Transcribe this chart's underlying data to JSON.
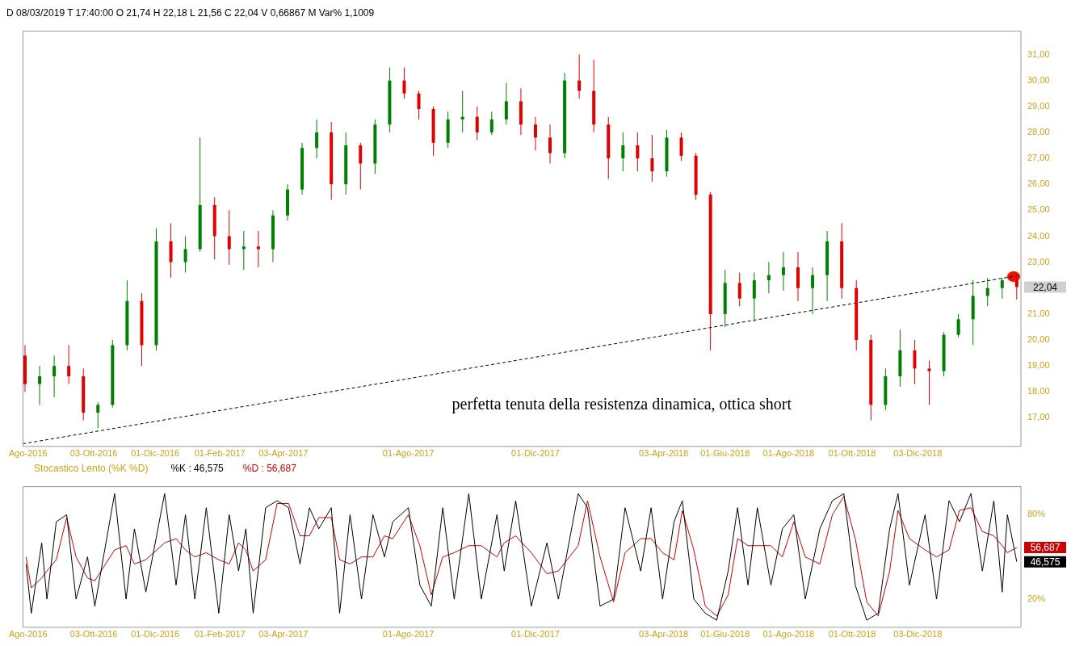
{
  "chart_data": [
    {
      "type": "candlestick",
      "subtitle": "D 08/03/2019  T 17:40:00  O 21,74  H 22,18  L 21,56  C 22,04  V 0,66867 M  Var% 1,1009",
      "x": [
        "2016-07-29",
        "2016-08-12",
        "2016-08-26",
        "2016-09-09",
        "2016-09-23",
        "2016-10-07",
        "2016-10-21",
        "2016-11-04",
        "2016-11-18",
        "2016-12-02",
        "2016-12-16",
        "2016-12-30",
        "2017-01-13",
        "2017-01-27",
        "2017-02-10",
        "2017-02-24",
        "2017-03-10",
        "2017-03-24",
        "2017-04-07",
        "2017-04-21",
        "2017-05-05",
        "2017-05-19",
        "2017-06-02",
        "2017-06-16",
        "2017-06-30",
        "2017-07-14",
        "2017-07-28",
        "2017-08-11",
        "2017-08-25",
        "2017-09-08",
        "2017-09-22",
        "2017-10-06",
        "2017-10-20",
        "2017-11-03",
        "2017-11-17",
        "2017-12-01",
        "2017-12-15",
        "2017-12-29",
        "2018-01-12",
        "2018-01-26",
        "2018-02-09",
        "2018-02-23",
        "2018-03-09",
        "2018-03-23",
        "2018-04-06",
        "2018-04-20",
        "2018-05-04",
        "2018-05-18",
        "2018-06-01",
        "2018-06-15",
        "2018-06-29",
        "2018-07-13",
        "2018-07-27",
        "2018-08-10",
        "2018-08-24",
        "2018-09-07",
        "2018-09-21",
        "2018-10-05",
        "2018-10-19",
        "2018-11-02",
        "2018-11-16",
        "2018-11-30",
        "2018-12-14",
        "2018-12-28",
        "2019-01-11",
        "2019-01-25",
        "2019-02-08",
        "2019-02-22",
        "2019-03-08"
      ],
      "ohlc": [
        [
          19.4,
          19.8,
          18.0,
          18.3
        ],
        [
          18.3,
          19.0,
          17.5,
          18.6
        ],
        [
          18.6,
          19.4,
          17.8,
          19.0
        ],
        [
          19.0,
          19.8,
          18.3,
          18.6
        ],
        [
          18.6,
          18.9,
          16.9,
          17.2
        ],
        [
          17.2,
          17.6,
          16.6,
          17.5
        ],
        [
          17.5,
          20.0,
          17.4,
          19.8
        ],
        [
          19.8,
          22.3,
          19.6,
          21.5
        ],
        [
          21.5,
          21.8,
          19.0,
          19.8
        ],
        [
          19.8,
          24.3,
          19.6,
          23.8
        ],
        [
          23.8,
          24.5,
          22.4,
          23.0
        ],
        [
          23.0,
          24.0,
          22.6,
          23.5
        ],
        [
          23.5,
          27.8,
          23.4,
          25.2
        ],
        [
          25.2,
          25.5,
          23.1,
          24.0
        ],
        [
          24.0,
          25.0,
          22.9,
          23.5
        ],
        [
          23.5,
          24.2,
          22.7,
          23.6
        ],
        [
          23.6,
          24.2,
          22.8,
          23.5
        ],
        [
          23.5,
          25.0,
          23.0,
          24.8
        ],
        [
          24.8,
          26.0,
          24.6,
          25.8
        ],
        [
          25.8,
          27.6,
          25.6,
          27.4
        ],
        [
          27.4,
          28.5,
          27.0,
          28.0
        ],
        [
          28.0,
          28.4,
          25.4,
          26.0
        ],
        [
          26.0,
          28.0,
          25.6,
          27.5
        ],
        [
          27.5,
          27.6,
          25.8,
          26.8
        ],
        [
          26.8,
          28.5,
          26.4,
          28.3
        ],
        [
          28.3,
          30.5,
          28.0,
          30.0
        ],
        [
          30.0,
          30.5,
          29.3,
          29.5
        ],
        [
          29.5,
          29.6,
          28.5,
          28.9
        ],
        [
          28.9,
          29.0,
          27.1,
          27.6
        ],
        [
          27.6,
          28.8,
          27.4,
          28.5
        ],
        [
          28.5,
          29.6,
          28.0,
          28.6
        ],
        [
          28.6,
          29.0,
          27.7,
          28.0
        ],
        [
          28.0,
          28.8,
          27.9,
          28.5
        ],
        [
          28.5,
          29.9,
          28.3,
          29.2
        ],
        [
          29.2,
          29.7,
          27.9,
          28.3
        ],
        [
          28.3,
          28.6,
          27.3,
          27.8
        ],
        [
          27.8,
          28.3,
          26.8,
          27.2
        ],
        [
          27.2,
          30.3,
          27.0,
          30.0
        ],
        [
          30.0,
          31.0,
          29.3,
          29.6
        ],
        [
          29.6,
          30.8,
          28.0,
          28.3
        ],
        [
          28.3,
          28.6,
          26.2,
          27.0
        ],
        [
          27.0,
          28.0,
          26.5,
          27.5
        ],
        [
          27.5,
          28.0,
          26.5,
          27.0
        ],
        [
          27.0,
          27.9,
          26.1,
          26.5
        ],
        [
          26.5,
          28.1,
          26.3,
          27.8
        ],
        [
          27.8,
          28.0,
          26.9,
          27.1
        ],
        [
          27.1,
          27.2,
          25.4,
          25.6
        ],
        [
          25.6,
          25.7,
          19.6,
          21.0
        ],
        [
          21.0,
          22.7,
          20.5,
          22.2
        ],
        [
          22.2,
          22.6,
          21.3,
          21.6
        ],
        [
          21.6,
          22.6,
          20.7,
          22.3
        ],
        [
          22.3,
          23.0,
          21.8,
          22.5
        ],
        [
          22.5,
          23.4,
          21.9,
          22.8
        ],
        [
          22.8,
          23.4,
          21.5,
          22.0
        ],
        [
          22.0,
          22.8,
          21.0,
          22.5
        ],
        [
          22.5,
          24.2,
          21.5,
          23.8
        ],
        [
          23.8,
          24.5,
          21.6,
          22.0
        ],
        [
          22.0,
          22.3,
          19.6,
          20.0
        ],
        [
          20.0,
          20.2,
          16.9,
          17.5
        ],
        [
          17.5,
          18.9,
          17.3,
          18.6
        ],
        [
          18.6,
          20.4,
          18.2,
          19.6
        ],
        [
          19.6,
          20.0,
          18.3,
          18.9
        ],
        [
          18.9,
          19.2,
          17.5,
          18.8
        ],
        [
          18.8,
          20.3,
          18.6,
          20.2
        ],
        [
          20.2,
          21.0,
          20.1,
          20.8
        ],
        [
          20.8,
          22.3,
          19.8,
          21.7
        ],
        [
          21.7,
          22.4,
          21.3,
          22.0
        ],
        [
          22.0,
          22.4,
          21.6,
          22.3
        ],
        [
          22.3,
          22.5,
          21.56,
          22.04
        ]
      ],
      "colors": [
        "#e00000",
        "#008000",
        "#008000",
        "#e00000",
        "#e00000",
        "#008000",
        "#008000",
        "#008000",
        "#e00000",
        "#008000",
        "#e00000",
        "#008000",
        "#008000",
        "#e00000",
        "#e00000",
        "#008000",
        "#e00000",
        "#008000",
        "#008000",
        "#008000",
        "#008000",
        "#e00000",
        "#008000",
        "#e00000",
        "#008000",
        "#008000",
        "#e00000",
        "#e00000",
        "#e00000",
        "#008000",
        "#008000",
        "#e00000",
        "#008000",
        "#008000",
        "#e00000",
        "#e00000",
        "#e00000",
        "#008000",
        "#e00000",
        "#e00000",
        "#e00000",
        "#008000",
        "#e00000",
        "#e00000",
        "#008000",
        "#e00000",
        "#e00000",
        "#e00000",
        "#008000",
        "#e00000",
        "#008000",
        "#008000",
        "#008000",
        "#e00000",
        "#008000",
        "#008000",
        "#e00000",
        "#e00000",
        "#e00000",
        "#008000",
        "#008000",
        "#e00000",
        "#e00000",
        "#008000",
        "#008000",
        "#008000",
        "#008000",
        "#008000",
        "#e00000"
      ],
      "series": [
        {
          "type": "line",
          "x": [
            "2016-07-27",
            "2019-03-12"
          ],
          "values": [
            16.0,
            22.5
          ],
          "color": "#000000",
          "line_style": "dashed"
        }
      ],
      "xlim": [
        "2016-07-27",
        "2019-03-12"
      ],
      "xticks": [
        {
          "value": "2016-08-01",
          "label": "Ago-2016"
        },
        {
          "value": "2016-10-03",
          "label": "03-Ott-2016"
        },
        {
          "value": "2016-12-01",
          "label": "01-Dic-2016"
        },
        {
          "value": "2017-02-01",
          "label": "01-Feb-2017"
        },
        {
          "value": "2017-04-03",
          "label": "03-Apr-2017"
        },
        {
          "value": "2017-08-01",
          "label": "01-Ago-2017"
        },
        {
          "value": "2017-12-01",
          "label": "01-Dic-2017"
        },
        {
          "value": "2018-04-03",
          "label": "03-Apr-2018"
        },
        {
          "value": "2018-06-01",
          "label": "01-Giu-2018"
        },
        {
          "value": "2018-08-01",
          "label": "01-Ago-2018"
        },
        {
          "value": "2018-10-01",
          "label": "01-Ott-2018"
        },
        {
          "value": "2018-12-03",
          "label": "03-Dic-2018"
        }
      ],
      "ylim": [
        15.9,
        31.9
      ],
      "yticks": [
        {
          "value": 17,
          "label": "17,00"
        },
        {
          "value": 18,
          "label": "18,00"
        },
        {
          "value": 19,
          "label": "19,00"
        },
        {
          "value": 20,
          "label": "20,00"
        },
        {
          "value": 21,
          "label": "21,00"
        },
        {
          "value": 23,
          "label": "23,00"
        },
        {
          "value": 24,
          "label": "24,00"
        },
        {
          "value": 25,
          "label": "25,00"
        },
        {
          "value": 26,
          "label": "26,00"
        },
        {
          "value": 27,
          "label": "27,00"
        },
        {
          "value": 28,
          "label": "28,00"
        },
        {
          "value": 29,
          "label": "29,00"
        },
        {
          "value": 30,
          "label": "30,00"
        },
        {
          "value": 31,
          "label": "31,00"
        }
      ],
      "annotations": [
        "perfetta tenuta della resistenza dinamica, ottica short",
        "22,04"
      ],
      "grid": false,
      "legend": false,
      "marker": "none"
    },
    {
      "type": "line",
      "title": "Stocastico Lento (%K %D)",
      "x": [
        "2016-07-30",
        "2016-08-04",
        "2016-08-14",
        "2016-08-19",
        "2016-08-28",
        "2016-09-07",
        "2016-09-16",
        "2016-09-27",
        "2016-10-04",
        "2016-10-23",
        "2016-11-03",
        "2016-11-11",
        "2016-11-22",
        "2016-12-10",
        "2016-12-21",
        "2016-12-30",
        "2017-01-08",
        "2017-01-19",
        "2017-01-31",
        "2017-02-10",
        "2017-02-19",
        "2017-02-26",
        "2017-03-05",
        "2017-03-17",
        "2017-03-28",
        "2017-04-08",
        "2017-04-19",
        "2017-04-28",
        "2017-05-07",
        "2017-05-19",
        "2017-05-27",
        "2017-06-06",
        "2017-06-17",
        "2017-06-28",
        "2017-07-09",
        "2017-07-17",
        "2017-08-01",
        "2017-08-12",
        "2017-08-23",
        "2017-09-03",
        "2017-09-14",
        "2017-09-28",
        "2017-10-10",
        "2017-10-25",
        "2017-11-01",
        "2017-11-12",
        "2017-11-27",
        "2017-12-12",
        "2017-12-23",
        "2018-01-11",
        "2018-01-20",
        "2018-02-01",
        "2018-02-14",
        "2018-02-25",
        "2018-03-12",
        "2018-03-22",
        "2018-04-02",
        "2018-04-13",
        "2018-04-21",
        "2018-05-02",
        "2018-05-13",
        "2018-05-24",
        "2018-06-04",
        "2018-06-13",
        "2018-06-23",
        "2018-07-02",
        "2018-07-15",
        "2018-07-26",
        "2018-08-06",
        "2018-08-17",
        "2018-08-31",
        "2018-09-12",
        "2018-09-23",
        "2018-10-04",
        "2018-10-15",
        "2018-10-26",
        "2018-11-06",
        "2018-11-14",
        "2018-11-25",
        "2018-12-10",
        "2018-12-21",
        "2019-01-02",
        "2019-01-12",
        "2019-01-23",
        "2019-02-03",
        "2019-02-14",
        "2019-02-22",
        "2019-02-27",
        "2019-03-08"
      ],
      "series": [
        {
          "name": "%K : 46,575",
          "color": "#000000",
          "values": [
            45,
            10,
            60,
            20,
            75,
            80,
            20,
            50,
            15,
            95,
            20,
            70,
            25,
            95,
            30,
            80,
            20,
            85,
            10,
            80,
            40,
            70,
            10,
            85,
            90,
            85,
            45,
            85,
            70,
            85,
            10,
            80,
            20,
            80,
            50,
            75,
            85,
            30,
            15,
            85,
            20,
            95,
            20,
            80,
            40,
            90,
            15,
            60,
            20,
            95,
            85,
            15,
            20,
            85,
            40,
            85,
            20,
            75,
            90,
            20,
            10,
            5,
            40,
            85,
            30,
            85,
            30,
            70,
            80,
            20,
            70,
            90,
            95,
            30,
            5,
            10,
            70,
            95,
            30,
            80,
            20,
            90,
            75,
            95,
            40,
            90,
            25,
            80,
            46.575
          ]
        },
        {
          "name": "%D : 56,687",
          "color": "#cc0000",
          "values": [
            50,
            28,
            35,
            40,
            48,
            78,
            50,
            35,
            33,
            55,
            58,
            45,
            48,
            60,
            63,
            55,
            50,
            53,
            48,
            45,
            60,
            55,
            40,
            48,
            88,
            88,
            65,
            65,
            78,
            78,
            48,
            45,
            50,
            50,
            65,
            63,
            80,
            58,
            23,
            50,
            53,
            58,
            58,
            50,
            60,
            65,
            53,
            38,
            40,
            58,
            90,
            50,
            18,
            53,
            63,
            63,
            53,
            48,
            83,
            55,
            15,
            8,
            23,
            63,
            58,
            58,
            58,
            50,
            75,
            50,
            45,
            80,
            93,
            63,
            18,
            8,
            40,
            83,
            63,
            55,
            50,
            55,
            83,
            85,
            68,
            65,
            58,
            53,
            56.687
          ]
        }
      ],
      "xlim": [
        "2016-07-27",
        "2019-03-12"
      ],
      "xticks": [
        {
          "value": "2016-08-01",
          "label": "Ago-2016"
        },
        {
          "value": "2016-10-03",
          "label": "03-Ott-2016"
        },
        {
          "value": "2016-12-01",
          "label": "01-Dic-2016"
        },
        {
          "value": "2017-02-01",
          "label": "01-Feb-2017"
        },
        {
          "value": "2017-04-03",
          "label": "03-Apr-2017"
        },
        {
          "value": "2017-08-01",
          "label": "01-Ago-2017"
        },
        {
          "value": "2017-12-01",
          "label": "01-Dic-2017"
        },
        {
          "value": "2018-04-03",
          "label": "03-Apr-2018"
        },
        {
          "value": "2018-06-01",
          "label": "01-Giu-2018"
        },
        {
          "value": "2018-08-01",
          "label": "01-Ago-2018"
        },
        {
          "value": "2018-10-01",
          "label": "01-Ott-2018"
        },
        {
          "value": "2018-12-03",
          "label": "03-Dic-2018"
        }
      ],
      "ylim": [
        0,
        100
      ],
      "yticks": [
        {
          "value": 20,
          "label": "20%"
        },
        {
          "value": 80,
          "label": "80%"
        }
      ],
      "annotations": [
        "46,575",
        "56,687"
      ],
      "grid": false,
      "legend": "top left",
      "marker": "none",
      "line_style": "solid"
    }
  ]
}
